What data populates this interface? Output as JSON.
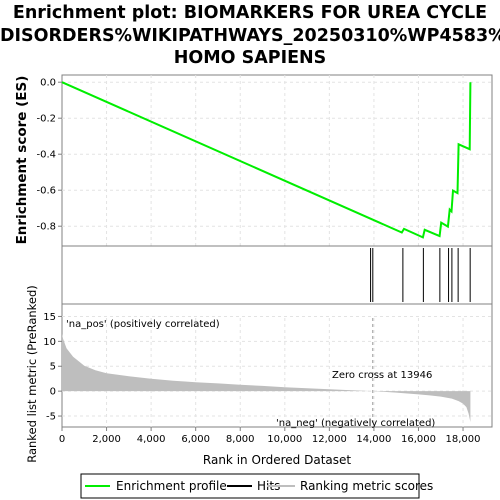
{
  "title_lines": [
    "Enrichment plot: BIOMARKERS FOR UREA CYCLE",
    "DISORDERS%WIKIPATHWAYS_20250310%WP4583%",
    "HOMO SAPIENS"
  ],
  "colors": {
    "enrichment": "#00ee00",
    "hits": "#000000",
    "metric": "#bebebe",
    "pos_label": "#ee4444",
    "neg_label": "#4444cc"
  },
  "chart_data": [
    {
      "type": "line",
      "name": "enrichment-profile",
      "ylabel": "Enrichment score (ES)",
      "xlim": [
        0,
        19300
      ],
      "ylim": [
        -0.91,
        0.04
      ],
      "yticks": [
        0.0,
        -0.2,
        -0.4,
        -0.6,
        -0.8
      ],
      "ytick_labels": [
        "0.0",
        "-0.2",
        "-0.4",
        "-0.6",
        "-0.8"
      ],
      "grid": true,
      "x": [
        0,
        15250,
        15350,
        16200,
        16280,
        16950,
        17020,
        17320,
        17400,
        17480,
        17550,
        17750,
        17800,
        18300,
        18330
      ],
      "y": [
        0.0,
        -0.835,
        -0.815,
        -0.862,
        -0.82,
        -0.855,
        -0.78,
        -0.802,
        -0.708,
        -0.718,
        -0.602,
        -0.616,
        -0.345,
        -0.372,
        0.0
      ]
    },
    {
      "type": "scatter",
      "name": "hits",
      "x": [
        13850,
        13950,
        15300,
        16220,
        16960,
        17350,
        17500,
        17780,
        18320
      ]
    },
    {
      "type": "heatmap",
      "name": "ranking-color-bar",
      "x_bounds": [
        0,
        300,
        1000,
        4900,
        7100,
        9900,
        13800,
        15300,
        16200,
        16700,
        17200,
        17900,
        18330
      ],
      "colors": [
        "#e8001a",
        "#ee3a3a",
        "#f25757",
        "#f57a80",
        "#fb9aa0",
        "#fdc6e2",
        "#dad6fa",
        "#b8b2f6",
        "#8a82ee",
        "#6a5fe6",
        "#4e40df",
        "#2a19d3"
      ]
    },
    {
      "type": "area",
      "name": "ranked-list-metric",
      "ylabel": "Ranked list metric (PreRanked)",
      "xlabel": "Rank in Ordered Dataset",
      "xlim": [
        0,
        19300
      ],
      "ylim": [
        -7.2,
        17.5
      ],
      "xticks": [
        0,
        2000,
        4000,
        6000,
        8000,
        10000,
        12000,
        14000,
        16000,
        18000
      ],
      "xtick_labels": [
        "0",
        "2,000",
        "4,000",
        "6,000",
        "8,000",
        "10,000",
        "12,000",
        "14,000",
        "16,000",
        "18,000"
      ],
      "yticks": [
        15,
        10,
        5,
        0,
        -5
      ],
      "ytick_labels": [
        "15",
        "10",
        "5",
        "0",
        "-5"
      ],
      "x": [
        0,
        50,
        200,
        500,
        1000,
        1500,
        2000,
        3000,
        4000,
        5000,
        6000,
        7000,
        8000,
        9000,
        10000,
        11000,
        12000,
        13000,
        13946,
        15000,
        16000,
        16500,
        17000,
        17500,
        17800,
        18000,
        18150,
        18250,
        18330
      ],
      "y": [
        11.5,
        10.5,
        8.6,
        6.9,
        5.1,
        4.2,
        3.6,
        3.0,
        2.5,
        2.1,
        1.8,
        1.55,
        1.3,
        1.05,
        0.8,
        0.58,
        0.38,
        0.18,
        0.0,
        -0.3,
        -0.65,
        -0.85,
        -1.1,
        -1.5,
        -2.0,
        -2.5,
        -3.2,
        -4.5,
        -6.2
      ],
      "pos_label": "'na_pos' (positively correlated)",
      "neg_label": "'na_neg' (negatively correlated)",
      "zero_cross_label": "Zero cross at 13946",
      "zero_cross": 13946
    }
  ],
  "legend": {
    "position": "bottom",
    "items": [
      {
        "label": "Enrichment profile",
        "kind": "line",
        "color": "#00ee00"
      },
      {
        "label": "Hits",
        "kind": "line",
        "color": "#000000"
      },
      {
        "label": "Ranking metric scores",
        "kind": "line",
        "color": "#bebebe"
      }
    ]
  }
}
